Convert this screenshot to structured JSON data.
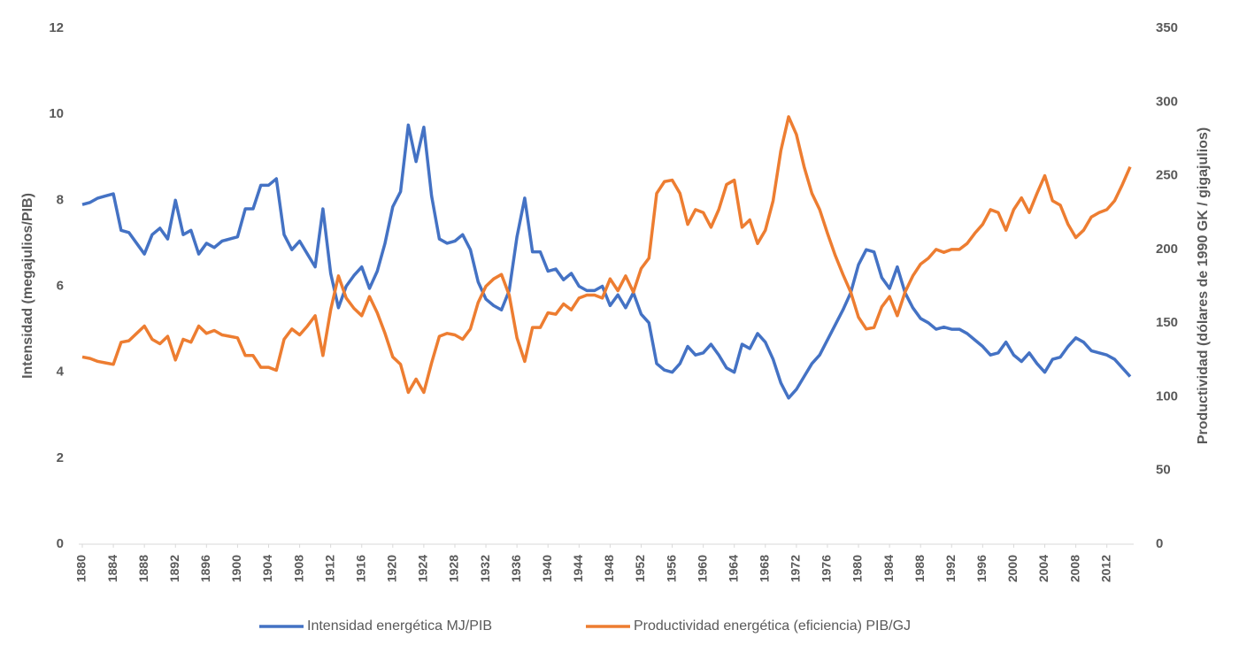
{
  "chart_data": {
    "type": "line",
    "y_label": "Intensidad  (megajulios/PIB)",
    "y2_label": "Productividad  (dólares de 1990 GK / gigajulios)",
    "x": [
      1880,
      1881,
      1882,
      1883,
      1884,
      1885,
      1886,
      1887,
      1888,
      1889,
      1890,
      1891,
      1892,
      1893,
      1894,
      1895,
      1896,
      1897,
      1898,
      1899,
      1900,
      1901,
      1902,
      1903,
      1904,
      1905,
      1906,
      1907,
      1908,
      1909,
      1910,
      1911,
      1912,
      1913,
      1914,
      1915,
      1916,
      1917,
      1918,
      1919,
      1920,
      1921,
      1922,
      1923,
      1924,
      1925,
      1926,
      1927,
      1928,
      1929,
      1930,
      1931,
      1932,
      1933,
      1934,
      1935,
      1936,
      1937,
      1938,
      1939,
      1940,
      1941,
      1942,
      1943,
      1944,
      1945,
      1946,
      1947,
      1948,
      1949,
      1950,
      1951,
      1952,
      1953,
      1954,
      1955,
      1956,
      1957,
      1958,
      1959,
      1960,
      1961,
      1962,
      1963,
      1964,
      1965,
      1966,
      1967,
      1968,
      1969,
      1970,
      1971,
      1972,
      1973,
      1974,
      1975,
      1976,
      1977,
      1978,
      1979,
      1980,
      1981,
      1982,
      1983,
      1984,
      1985,
      1986,
      1987,
      1988,
      1989,
      1990,
      1991,
      1992,
      1993,
      1994,
      1995,
      1996,
      1997,
      1998,
      1999,
      2000,
      2001,
      2002,
      2003,
      2004,
      2005,
      2006,
      2007,
      2008,
      2009,
      2010,
      2011,
      2012,
      2013,
      2014,
      2015
    ],
    "xlim": [
      1880,
      2015
    ],
    "xticks": [
      1880,
      1884,
      1888,
      1892,
      1896,
      1900,
      1904,
      1908,
      1912,
      1916,
      1920,
      1924,
      1928,
      1932,
      1936,
      1940,
      1944,
      1948,
      1952,
      1956,
      1960,
      1964,
      1968,
      1972,
      1976,
      1980,
      1984,
      1988,
      1992,
      1996,
      2000,
      2004,
      2008,
      2012
    ],
    "ylim": [
      0,
      12
    ],
    "yticks": [
      0,
      2,
      4,
      6,
      8,
      10,
      12
    ],
    "y2lim": [
      0,
      350
    ],
    "y2ticks": [
      0,
      50,
      100,
      150,
      200,
      250,
      300,
      350
    ],
    "grid": false,
    "legend": "bottom",
    "series": [
      {
        "name": "Intensidad energética MJ/PIB",
        "color": "#4472c4",
        "values": [
          7.9,
          7.95,
          8.05,
          8.1,
          8.15,
          7.3,
          7.25,
          7.0,
          6.75,
          7.2,
          7.35,
          7.1,
          8.0,
          7.2,
          7.3,
          6.75,
          7.0,
          6.9,
          7.05,
          7.1,
          7.15,
          7.8,
          7.8,
          8.35,
          8.35,
          8.5,
          7.2,
          6.85,
          7.05,
          6.75,
          6.45,
          7.8,
          6.3,
          5.5,
          6.0,
          6.25,
          6.45,
          5.95,
          6.35,
          7.0,
          7.85,
          8.2,
          9.75,
          8.9,
          9.7,
          8.1,
          7.1,
          7.0,
          7.05,
          7.2,
          6.85,
          6.1,
          5.7,
          5.55,
          5.45,
          5.9,
          7.15,
          8.05,
          6.8,
          6.8,
          6.35,
          6.4,
          6.15,
          6.3,
          6.0,
          5.9,
          5.9,
          6.0,
          5.55,
          5.8,
          5.5,
          5.85,
          5.35,
          5.15,
          4.2,
          4.05,
          4.0,
          4.2,
          4.6,
          4.4,
          4.45,
          4.65,
          4.4,
          4.1,
          4.0,
          4.65,
          4.55,
          4.9,
          4.7,
          4.3,
          3.75,
          3.4,
          3.6,
          3.9,
          4.2,
          4.4,
          4.75,
          5.1,
          5.45,
          5.85,
          6.5,
          6.85,
          6.8,
          6.2,
          5.95,
          6.45,
          5.85,
          5.5,
          5.25,
          5.15,
          5.0,
          5.05,
          5.0,
          5.0,
          4.9,
          4.75,
          4.6,
          4.4,
          4.45,
          4.7,
          4.4,
          4.25,
          4.45,
          4.2,
          4.0,
          4.3,
          4.35,
          4.6,
          4.8,
          4.7,
          4.5,
          4.45,
          4.4,
          4.3,
          4.1,
          3.9
        ]
      },
      {
        "name": "Productividad energética (eficiencia) PIB/GJ",
        "color": "#ed7d31",
        "axis": "y2",
        "values": [
          127,
          126,
          124,
          123,
          122,
          137,
          138,
          143,
          148,
          139,
          136,
          141,
          125,
          139,
          137,
          148,
          143,
          145,
          142,
          141,
          140,
          128,
          128,
          120,
          120,
          118,
          139,
          146,
          142,
          148,
          155,
          128,
          159,
          182,
          167,
          160,
          155,
          168,
          157,
          143,
          127,
          122,
          103,
          112,
          103,
          123,
          141,
          143,
          142,
          139,
          146,
          164,
          175,
          180,
          183,
          169,
          140,
          124,
          147,
          147,
          157,
          156,
          163,
          159,
          167,
          169,
          169,
          167,
          180,
          172,
          182,
          171,
          187,
          194,
          238,
          246,
          247,
          238,
          217,
          227,
          225,
          215,
          227,
          244,
          247,
          215,
          220,
          204,
          213,
          233,
          267,
          290,
          278,
          256,
          238,
          227,
          211,
          196,
          183,
          171,
          154,
          146,
          147,
          161,
          168,
          155,
          171,
          182,
          190,
          194,
          200,
          198,
          200,
          200,
          204,
          211,
          217,
          227,
          225,
          213,
          227,
          235,
          225,
          238,
          250,
          233,
          230,
          217,
          208,
          213,
          222,
          225,
          227,
          233,
          244,
          256
        ]
      }
    ]
  }
}
